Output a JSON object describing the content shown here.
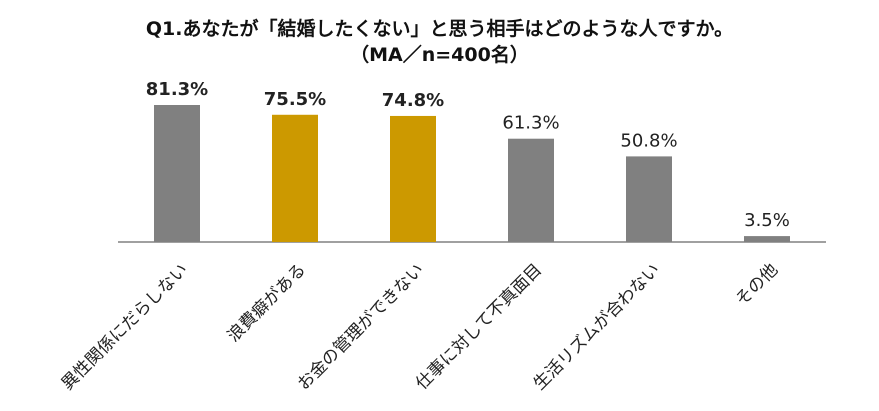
{
  "chart_data": {
    "type": "bar",
    "title": "Q1.あなたが「結婚したくない」と思う相手はどのような人ですか。",
    "subtitle": "（MA／n=400名）",
    "categories": [
      "異性関係にだらしない",
      "浪費癖がある",
      "お金の管理ができない",
      "仕事に対して不真面目",
      "生活リズムが合わない",
      "その他"
    ],
    "values": [
      81.3,
      75.5,
      74.8,
      61.3,
      50.8,
      3.5
    ],
    "value_labels": [
      "81.3%",
      "75.5%",
      "74.8%",
      "61.3%",
      "50.8%",
      "3.5%"
    ],
    "bar_colors": [
      "#808080",
      "#CC9900",
      "#CC9900",
      "#808080",
      "#808080",
      "#808080"
    ],
    "bold_labels": [
      true,
      true,
      true,
      false,
      false,
      false
    ],
    "unit": "%",
    "ylim": [
      0,
      100
    ],
    "grid": false,
    "legend": "none",
    "axis_color": "#808080"
  }
}
